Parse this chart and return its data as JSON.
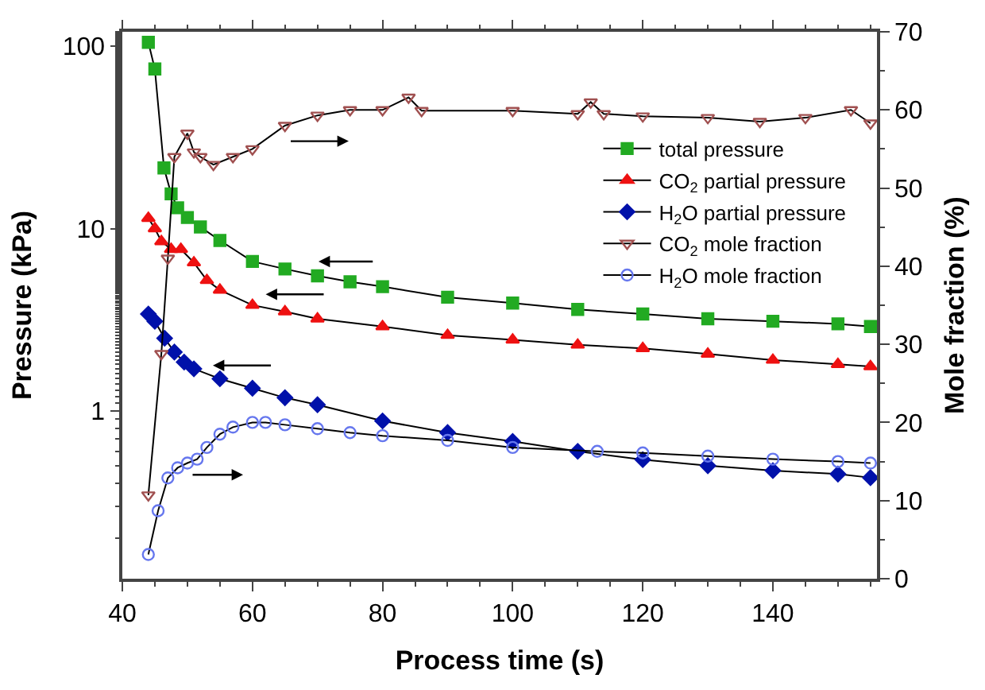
{
  "chart_data": {
    "type": "line",
    "xlabel": "Process time (s)",
    "ylabel": "Pressure (kPa)",
    "y2label": "Mole fraction (%)",
    "xlim": [
      40,
      156
    ],
    "xticks": [
      40,
      60,
      80,
      100,
      120,
      140
    ],
    "ylim": [
      0.12,
      120
    ],
    "yticks": [
      1,
      10,
      100
    ],
    "log": "y",
    "y2lim": [
      0,
      70
    ],
    "y2ticks": [
      0,
      10,
      20,
      30,
      40,
      50,
      60,
      70
    ],
    "legend": "right",
    "series": [
      {
        "name": "total pressure",
        "color": "#22aa22",
        "marker": "square",
        "x": [
          44,
          45,
          46.4,
          47.5,
          48.5,
          50,
          52,
          55,
          60,
          65,
          70,
          75,
          80,
          90,
          100,
          110,
          120,
          130,
          140,
          150,
          155
        ],
        "values": [
          105,
          75,
          21.5,
          15.5,
          13,
          11.5,
          10.2,
          8.6,
          6.6,
          6.0,
          5.5,
          5.1,
          4.8,
          4.2,
          3.9,
          3.6,
          3.4,
          3.2,
          3.1,
          3.0,
          2.9
        ]
      },
      {
        "name": "CO$_{2}$ partial pressure",
        "color": "#ee1111",
        "marker": "triangle",
        "x": [
          44,
          45,
          46,
          47.5,
          49,
          51,
          53,
          55,
          60,
          65,
          70,
          80,
          90,
          100,
          110,
          120,
          130,
          140,
          150,
          155
        ],
        "values": [
          11.4,
          10,
          8.5,
          7.7,
          7.7,
          6.5,
          5.2,
          4.6,
          3.8,
          3.5,
          3.2,
          2.9,
          2.6,
          2.45,
          2.3,
          2.2,
          2.05,
          1.9,
          1.8,
          1.75
        ]
      },
      {
        "name": "H$_{2}$O partial pressure",
        "color": "#0011aa",
        "marker": "diamond",
        "x": [
          44,
          45,
          46.5,
          48,
          49.5,
          51,
          55,
          60,
          65,
          70,
          80,
          90,
          100,
          110,
          120,
          130,
          140,
          150,
          155
        ],
        "values": [
          3.4,
          3.1,
          2.5,
          2.1,
          1.85,
          1.7,
          1.5,
          1.33,
          1.18,
          1.08,
          0.88,
          0.76,
          0.68,
          0.6,
          0.54,
          0.5,
          0.47,
          0.45,
          0.43
        ]
      },
      {
        "name": "CO$_{2}$ mole fraction",
        "color": "#a05050",
        "marker": "triangle-down-open",
        "axis": "y2",
        "x": [
          44,
          46,
          47,
          48,
          50,
          51,
          52,
          54,
          57,
          60,
          65,
          70,
          75,
          80,
          84,
          86,
          100,
          110,
          112,
          114,
          120,
          130,
          138,
          145,
          152,
          155
        ],
        "values": [
          10.7,
          28.8,
          41,
          54,
          57,
          54.6,
          54,
          53,
          54,
          55,
          58,
          59.3,
          60,
          60,
          61.6,
          59.9,
          59.9,
          59.5,
          61,
          59.5,
          59.2,
          59,
          58.5,
          59,
          60,
          58.3
        ]
      },
      {
        "name": "H$_{2}$O mole fraction",
        "color": "#6677ee",
        "marker": "circle-open",
        "axis": "y2",
        "x": [
          44,
          45.5,
          47,
          48.5,
          50,
          51.5,
          53,
          55,
          57,
          60,
          62,
          65,
          70,
          75,
          80,
          90,
          100,
          113,
          120,
          130,
          140,
          150,
          155
        ],
        "values": [
          3.1,
          8.7,
          12.9,
          14.2,
          14.8,
          15.3,
          16.8,
          18.5,
          19.4,
          20,
          20,
          19.7,
          19.2,
          18.7,
          18.3,
          17.7,
          16.8,
          16.3,
          16.1,
          15.7,
          15.3,
          15.0,
          14.8
        ]
      }
    ]
  }
}
